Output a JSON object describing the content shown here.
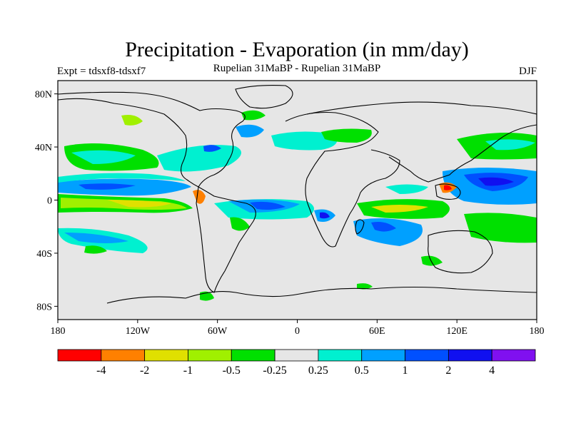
{
  "title": "Precipitation - Evaporation (in mm/day)",
  "expt_label": "Expt = tdsxf8-tdsxf7",
  "subtitle": "Rupelian  31MaBP - Rupelian  31MaBP",
  "season": "DJF",
  "map": {
    "projection": "cylindrical-equidistant",
    "lon_range": [
      -180,
      180
    ],
    "lat_range": [
      -90,
      90
    ],
    "background_color": "#e6e6e6",
    "lat_ticks": [
      {
        "value": 80,
        "label": "80N"
      },
      {
        "value": 40,
        "label": "40N"
      },
      {
        "value": 0,
        "label": "0"
      },
      {
        "value": -40,
        "label": "40S"
      },
      {
        "value": -80,
        "label": "80S"
      }
    ],
    "lon_ticks": [
      {
        "value": -180,
        "label": "180"
      },
      {
        "value": -120,
        "label": "120W"
      },
      {
        "value": -60,
        "label": "60W"
      },
      {
        "value": 0,
        "label": "0"
      },
      {
        "value": 60,
        "label": "60E"
      },
      {
        "value": 120,
        "label": "120E"
      },
      {
        "value": 180,
        "label": "180"
      }
    ]
  },
  "colorbar": {
    "colors": [
      "#ff0000",
      "#ff8000",
      "#e0e000",
      "#a0f000",
      "#00e000",
      "#e6e6e6",
      "#00f0d0",
      "#00a0ff",
      "#0050ff",
      "#1010f0",
      "#8010f0"
    ],
    "labels": [
      "-4",
      "-2",
      "-1",
      "-0.5",
      "-0.25",
      "0.25",
      "0.5",
      "1",
      "2",
      "4"
    ]
  },
  "chart_data": {
    "type": "heatmap",
    "title": "Precipitation - Evaporation (in mm/day)",
    "variable": "P-E difference",
    "units": "mm/day",
    "levels": [
      -4,
      -2,
      -1,
      -0.5,
      -0.25,
      0.25,
      0.5,
      1,
      2,
      4
    ],
    "field_patches": [
      {
        "region": "tropical east Pacific",
        "lon": [
          -180,
          -90
        ],
        "lat": [
          0,
          8
        ],
        "class": 8
      },
      {
        "region": "equatorial central Pacific",
        "lon": [
          -165,
          -100
        ],
        "lat": [
          -6,
          0
        ],
        "class": 2
      },
      {
        "region": "north Pacific",
        "lon": [
          -170,
          -130
        ],
        "lat": [
          30,
          42
        ],
        "class": 4
      },
      {
        "region": "south Pacific",
        "lon": [
          -175,
          -130
        ],
        "lat": [
          -30,
          -20
        ],
        "class": 7
      },
      {
        "region": "north Atlantic",
        "lon": [
          -50,
          -30
        ],
        "lat": [
          48,
          55
        ],
        "class": 8
      },
      {
        "region": "tropical Atlantic",
        "lon": [
          -45,
          -10
        ],
        "lat": [
          -5,
          2
        ],
        "class": 8
      },
      {
        "region": "southern Africa",
        "lon": [
          10,
          30
        ],
        "lat": [
          -15,
          -5
        ],
        "class": 9
      },
      {
        "region": "south Indian Ocean",
        "lon": [
          40,
          65
        ],
        "lat": [
          -20,
          -10
        ],
        "class": 8
      },
      {
        "region": "Indian Ocean",
        "lon": [
          50,
          100
        ],
        "lat": [
          -8,
          0
        ],
        "class": 2
      },
      {
        "region": "maritime continent",
        "lon": [
          110,
          130
        ],
        "lat": [
          4,
          12
        ],
        "class": 0
      },
      {
        "region": "west Pacific",
        "lon": [
          130,
          175
        ],
        "lat": [
          4,
          15
        ],
        "class": 9
      },
      {
        "region": "southwest Pacific",
        "lon": [
          140,
          180
        ],
        "lat": [
          -30,
          -15
        ],
        "class": 6
      }
    ]
  }
}
